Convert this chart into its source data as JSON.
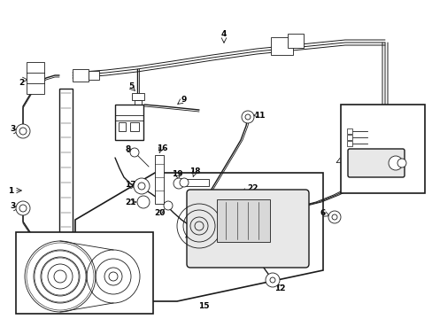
{
  "bg_color": "#ffffff",
  "line_color": "#1a1a1a",
  "fig_width": 4.89,
  "fig_height": 3.6,
  "dpi": 100,
  "lw_main": 1.0,
  "lw_thin": 0.6,
  "fs": 6.5
}
